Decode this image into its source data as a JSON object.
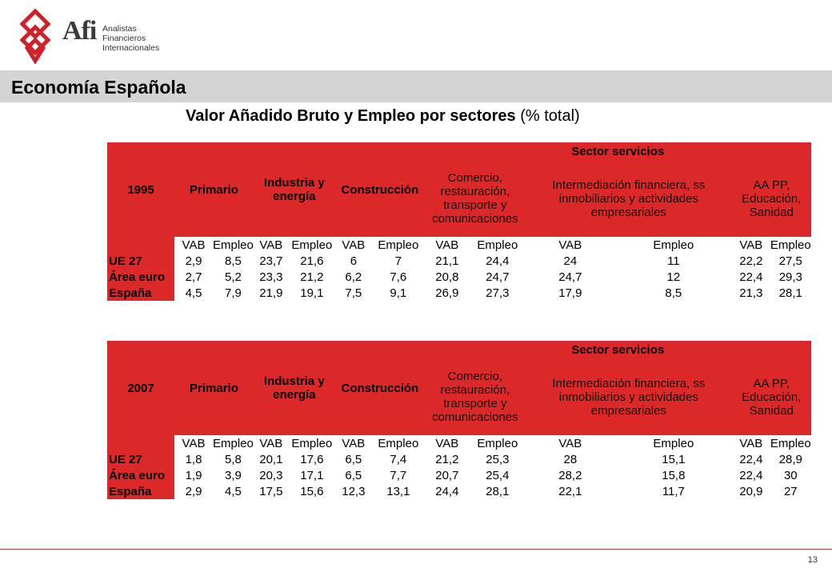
{
  "logo": {
    "word": "Afi",
    "lines": [
      "Analistas",
      "Financieros",
      "Internacionales"
    ]
  },
  "section_title": "Economía Española",
  "subtitle": {
    "bold": "Valor Añadido Bruto y Empleo por sectores",
    "rest": " (%  total)"
  },
  "headers": {
    "group": "Sector servicios",
    "primario": "Primario",
    "industria": [
      "Industria y",
      "energía"
    ],
    "construccion": "Construcción",
    "comercio": [
      "Comercio,",
      "restauración,",
      "transporte y",
      "comunicaciones"
    ],
    "intermediacion": [
      "Intermediación financiera, ss",
      "inmobiliarios y actividades",
      "empresariales"
    ],
    "aapp": [
      "AA PP,",
      "Educación,",
      "Sanidad"
    ],
    "sub": [
      "VAB",
      "Empleo",
      "VAB",
      "Empleo",
      "VAB",
      "Empleo",
      "VAB",
      "Empleo",
      "VAB",
      "Empleo",
      "VAB",
      "Empleo"
    ]
  },
  "tables": [
    {
      "year": "1995",
      "rows": [
        {
          "label": "UE 27",
          "values": [
            "2,9",
            "8,5",
            "23,7",
            "21,6",
            "6",
            "7",
            "21,1",
            "24,4",
            "24",
            "11",
            "22,2",
            "27,5"
          ]
        },
        {
          "label": "Área euro",
          "values": [
            "2,7",
            "5,2",
            "23,3",
            "21,2",
            "6,2",
            "7,6",
            "20,8",
            "24,7",
            "24,7",
            "12",
            "22,4",
            "29,3"
          ]
        },
        {
          "label": "España",
          "values": [
            "4,5",
            "7,9",
            "21,9",
            "19,1",
            "7,5",
            "9,1",
            "26,9",
            "27,3",
            "17,9",
            "8,5",
            "21,3",
            "28,1"
          ]
        }
      ]
    },
    {
      "year": "2007",
      "rows": [
        {
          "label": "UE 27",
          "values": [
            "1,8",
            "5,8",
            "20,1",
            "17,6",
            "6,5",
            "7,4",
            "21,2",
            "25,3",
            "28",
            "15,1",
            "22,4",
            "28,9"
          ]
        },
        {
          "label": "Área euro",
          "values": [
            "1,9",
            "3,9",
            "20,3",
            "17,1",
            "6,5",
            "7,7",
            "20,7",
            "25,4",
            "28,2",
            "15,8",
            "22,4",
            "30"
          ]
        },
        {
          "label": "España",
          "values": [
            "2,9",
            "4,5",
            "17,5",
            "15,6",
            "12,3",
            "13,1",
            "24,4",
            "28,1",
            "22,1",
            "11,7",
            "20,9",
            "27"
          ]
        }
      ]
    }
  ],
  "page_number": "13"
}
